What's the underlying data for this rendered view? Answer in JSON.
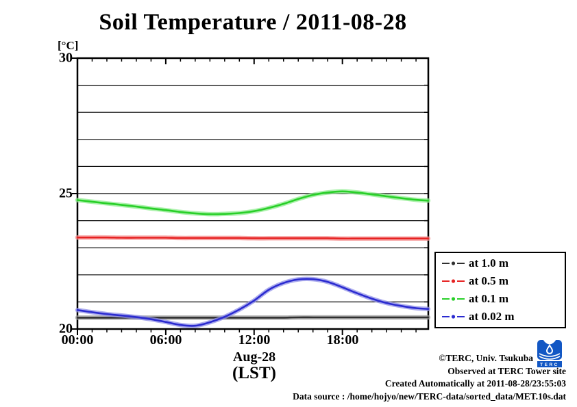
{
  "title": "Soil Temperature / 2011-08-28",
  "y_axis": {
    "unit_label": "[°C]",
    "tick_labels": [
      "30",
      "25",
      "20"
    ],
    "tick_values": [
      30,
      25,
      20
    ]
  },
  "x_axis": {
    "tick_labels": [
      "00:00",
      "06:00",
      "12:00",
      "18:00"
    ],
    "tick_hours": [
      0,
      6,
      12,
      18
    ],
    "date_label": "Aug-28",
    "timezone_label": "(LST)"
  },
  "credits": {
    "lines": [
      "©TERC, Univ. Tsukuba",
      "Observed at TERC Tower site",
      "Created Automatically at 2011-08-28/23:55:03",
      "Data source : /home/hojyo/new/TERC-data/sorted_data/MET.10s.dat"
    ]
  },
  "logo": {
    "text": "TERC",
    "color": "#1257c4"
  },
  "chart_data": {
    "type": "line",
    "title": "Soil Temperature / 2011-08-28",
    "xlabel": "Aug-28 (LST)",
    "ylabel": "[°C]",
    "ylim": [
      20,
      30
    ],
    "x_range_hours": [
      0,
      23.8333
    ],
    "grid": "horizontal lines every 1 degree C",
    "legend_position": "outside right-bottom",
    "x_hours": [
      0,
      1,
      2,
      3,
      4,
      5,
      6,
      7,
      8,
      9,
      10,
      11,
      12,
      13,
      14,
      15,
      16,
      17,
      18,
      19,
      20,
      21,
      22,
      23,
      23.83
    ],
    "series": [
      {
        "name": "at 1.0 m",
        "depth_m": 1.0,
        "color": "#2f2f2f",
        "halo": "#9a9a9a",
        "values": [
          20.42,
          20.42,
          20.42,
          20.42,
          20.42,
          20.42,
          20.42,
          20.42,
          20.42,
          20.42,
          20.42,
          20.42,
          20.42,
          20.42,
          20.42,
          20.43,
          20.43,
          20.43,
          20.43,
          20.43,
          20.43,
          20.43,
          20.43,
          20.43,
          20.43
        ]
      },
      {
        "name": "at 0.5 m",
        "depth_m": 0.5,
        "color": "#e62222",
        "halo": "#f59090",
        "values": [
          23.38,
          23.38,
          23.38,
          23.37,
          23.37,
          23.37,
          23.37,
          23.36,
          23.36,
          23.36,
          23.36,
          23.36,
          23.35,
          23.35,
          23.35,
          23.35,
          23.35,
          23.35,
          23.34,
          23.34,
          23.34,
          23.34,
          23.34,
          23.34,
          23.34
        ]
      },
      {
        "name": "at 0.1 m",
        "depth_m": 0.1,
        "color": "#28cf28",
        "halo": "#8dec8d",
        "values": [
          24.76,
          24.7,
          24.64,
          24.58,
          24.52,
          24.45,
          24.39,
          24.32,
          24.27,
          24.24,
          24.25,
          24.28,
          24.35,
          24.47,
          24.62,
          24.8,
          24.95,
          25.04,
          25.08,
          25.04,
          24.97,
          24.9,
          24.83,
          24.77,
          24.74
        ]
      },
      {
        "name": "at 0.02 m",
        "depth_m": 0.02,
        "color": "#2b2bd0",
        "halo": "#9090e8",
        "values": [
          20.7,
          20.62,
          20.55,
          20.5,
          20.44,
          20.36,
          20.26,
          20.15,
          20.12,
          20.25,
          20.45,
          20.72,
          21.05,
          21.45,
          21.7,
          21.83,
          21.84,
          21.74,
          21.54,
          21.32,
          21.12,
          20.96,
          20.85,
          20.77,
          20.74
        ]
      }
    ]
  }
}
